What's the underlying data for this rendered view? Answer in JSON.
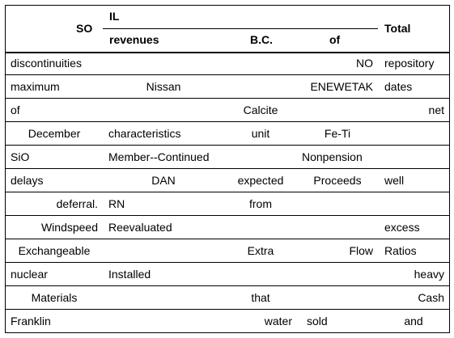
{
  "header": {
    "c0": "SO",
    "c1_top": "IL",
    "c1_bottom": "revenues",
    "c2_bottom": "B.C.",
    "c3_bottom": "of",
    "c4": "Total"
  },
  "rows": [
    [
      "discontinuities",
      "",
      "",
      "NO",
      "repository"
    ],
    [
      "maximum",
      "Nissan",
      "",
      "ENEWETAK",
      "dates"
    ],
    [
      "of",
      "",
      "Calcite",
      "",
      "net"
    ],
    [
      "December",
      "characteristics",
      "unit",
      "Fe-Ti",
      ""
    ],
    [
      "SiO",
      "Member--Continued",
      "",
      "Nonpension",
      ""
    ],
    [
      "delays",
      "DAN",
      "expected",
      "Proceeds",
      "well"
    ],
    [
      "deferral.",
      "RN",
      "from",
      "",
      ""
    ],
    [
      "Windspeed",
      "Reevaluated",
      "",
      "",
      "excess"
    ],
    [
      "Exchangeable",
      "",
      "Extra",
      "Flow",
      "Ratios"
    ],
    [
      "nuclear",
      "Installed",
      "",
      "",
      "heavy"
    ],
    [
      "Materials",
      "",
      "that",
      "",
      "Cash"
    ],
    [
      "Franklin",
      "",
      "water",
      "sold",
      "and"
    ]
  ]
}
